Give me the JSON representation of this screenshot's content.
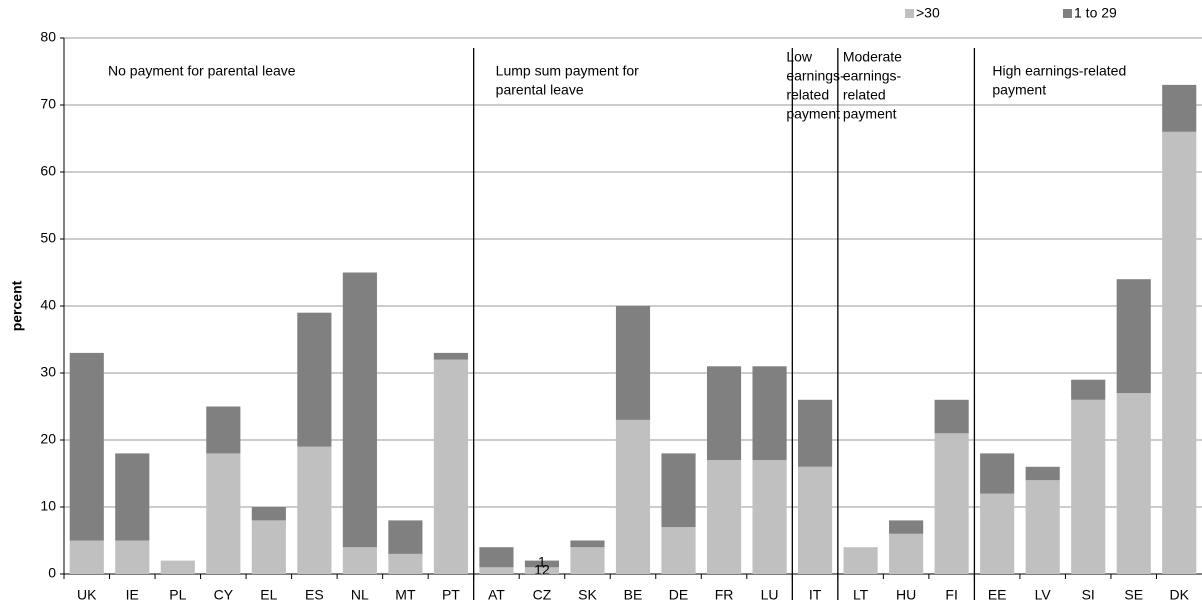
{
  "chart_data": {
    "type": "stacked-bar",
    "y_label": "percent",
    "ylim": [
      0,
      80
    ],
    "yticks": [
      0,
      10,
      20,
      30,
      40,
      50,
      60,
      70,
      80
    ],
    "grid": true,
    "legend": "top-right",
    "groups": [
      {
        "label": [
          "No payment for parental leave"
        ],
        "categories": [
          "UK",
          "IE",
          "PL",
          "CY",
          "EL",
          "ES",
          "NL",
          "MT",
          "PT"
        ]
      },
      {
        "label": [
          "Lump sum payment for",
          "parental leave"
        ],
        "categories": [
          "AT",
          "CZ",
          "SK",
          "BE",
          "DE",
          "FR",
          "LU"
        ]
      },
      {
        "label": [
          "Low",
          "earnings-",
          "related",
          "payment"
        ],
        "categories": [
          "IT"
        ]
      },
      {
        "label": [
          "Moderate",
          "earnings-",
          "related",
          "payment"
        ],
        "categories": [
          "LT",
          "HU",
          "FI"
        ]
      },
      {
        "label": [
          "High earnings-related",
          "payment"
        ],
        "categories": [
          "EE",
          "LV",
          "SI",
          "SE",
          "DK"
        ]
      }
    ],
    "series": [
      {
        "name": ">30",
        "color": "#c0c0c0",
        "values": [
          5,
          5,
          2,
          18,
          8,
          19,
          4,
          3,
          32,
          1,
          1,
          4,
          23,
          7,
          17,
          17,
          16,
          4,
          6,
          21,
          12,
          14,
          26,
          27,
          66
        ]
      },
      {
        "name": "1 to 29",
        "color": "#808080",
        "values": [
          28,
          13,
          0,
          7,
          2,
          20,
          41,
          5,
          1,
          3,
          1,
          1,
          17,
          11,
          14,
          14,
          10,
          0,
          2,
          5,
          6,
          2,
          3,
          17,
          7
        ]
      }
    ],
    "annotations": [
      "1",
      "12"
    ]
  }
}
